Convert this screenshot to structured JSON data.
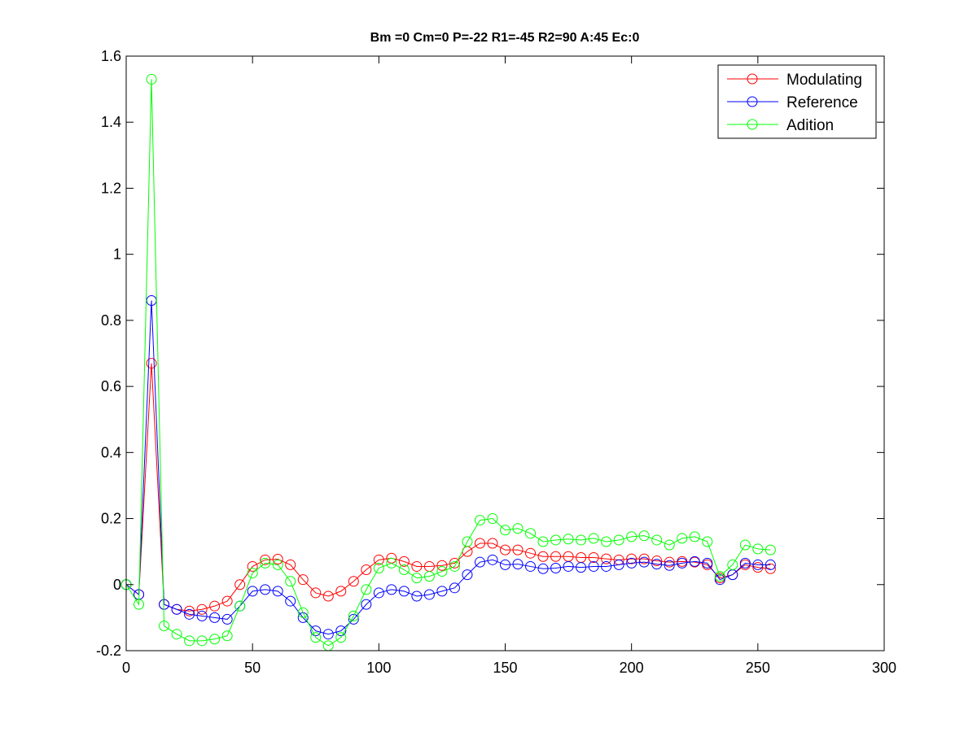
{
  "chart_data": {
    "type": "line",
    "title": "Bm =0  Cm=0  P=-22  R1=-45  R2=90  A:45  Ec:0",
    "xlabel": "",
    "ylabel": "",
    "xlim": [
      0,
      300
    ],
    "ylim": [
      -0.2,
      1.6
    ],
    "xticks": [
      0,
      50,
      100,
      150,
      200,
      250,
      300
    ],
    "xtick_labels": [
      "0",
      "50",
      "100",
      "150",
      "200",
      "250",
      "300"
    ],
    "yticks": [
      -0.2,
      0,
      0.2,
      0.4,
      0.6,
      0.8,
      1,
      1.2,
      1.4,
      1.6
    ],
    "ytick_labels": [
      "-0.2",
      "0",
      "0.2",
      "0.4",
      "0.6",
      "0.8",
      "1",
      "1.2",
      "1.4",
      "1.6"
    ],
    "grid": false,
    "legend_position": "top-right",
    "marker": "circle",
    "x": [
      0,
      5,
      10,
      15,
      20,
      25,
      30,
      35,
      40,
      45,
      50,
      55,
      60,
      65,
      70,
      75,
      80,
      85,
      90,
      95,
      100,
      105,
      110,
      115,
      120,
      125,
      130,
      135,
      140,
      145,
      150,
      155,
      160,
      165,
      170,
      175,
      180,
      185,
      190,
      195,
      200,
      205,
      210,
      215,
      220,
      225,
      230,
      235,
      240,
      245,
      250,
      255
    ],
    "series": [
      {
        "name": "Modulating",
        "color": "#ff0000",
        "values": [
          0.0,
          -0.03,
          0.67,
          -0.06,
          -0.075,
          -0.08,
          -0.075,
          -0.065,
          -0.05,
          0.0,
          0.055,
          0.075,
          0.077,
          0.06,
          0.015,
          -0.025,
          -0.035,
          -0.02,
          0.01,
          0.045,
          0.075,
          0.08,
          0.07,
          0.055,
          0.055,
          0.058,
          0.065,
          0.1,
          0.125,
          0.125,
          0.105,
          0.105,
          0.095,
          0.085,
          0.085,
          0.085,
          0.082,
          0.082,
          0.078,
          0.075,
          0.078,
          0.078,
          0.072,
          0.068,
          0.07,
          0.068,
          0.06,
          0.02,
          0.03,
          0.06,
          0.052,
          0.048
        ]
      },
      {
        "name": "Reference",
        "color": "#0000ff",
        "values": [
          0.0,
          -0.03,
          0.86,
          -0.06,
          -0.075,
          -0.09,
          -0.095,
          -0.1,
          -0.105,
          -0.065,
          -0.02,
          -0.015,
          -0.02,
          -0.05,
          -0.1,
          -0.14,
          -0.15,
          -0.14,
          -0.105,
          -0.06,
          -0.025,
          -0.015,
          -0.02,
          -0.035,
          -0.03,
          -0.02,
          -0.01,
          0.03,
          0.068,
          0.075,
          0.06,
          0.062,
          0.055,
          0.048,
          0.05,
          0.055,
          0.052,
          0.055,
          0.055,
          0.06,
          0.065,
          0.068,
          0.062,
          0.058,
          0.065,
          0.07,
          0.065,
          0.015,
          0.03,
          0.065,
          0.06,
          0.06
        ]
      },
      {
        "name": "Adition",
        "color": "#00ff00",
        "values": [
          0.0,
          -0.06,
          1.53,
          -0.125,
          -0.15,
          -0.17,
          -0.17,
          -0.165,
          -0.155,
          -0.065,
          0.035,
          0.065,
          0.06,
          0.01,
          -0.085,
          -0.16,
          -0.185,
          -0.16,
          -0.095,
          -0.015,
          0.05,
          0.065,
          0.045,
          0.02,
          0.025,
          0.04,
          0.055,
          0.13,
          0.195,
          0.2,
          0.165,
          0.17,
          0.155,
          0.13,
          0.135,
          0.138,
          0.135,
          0.14,
          0.13,
          0.135,
          0.145,
          0.148,
          0.135,
          0.12,
          0.14,
          0.145,
          0.13,
          0.025,
          0.06,
          0.12,
          0.108,
          0.105
        ]
      }
    ]
  }
}
